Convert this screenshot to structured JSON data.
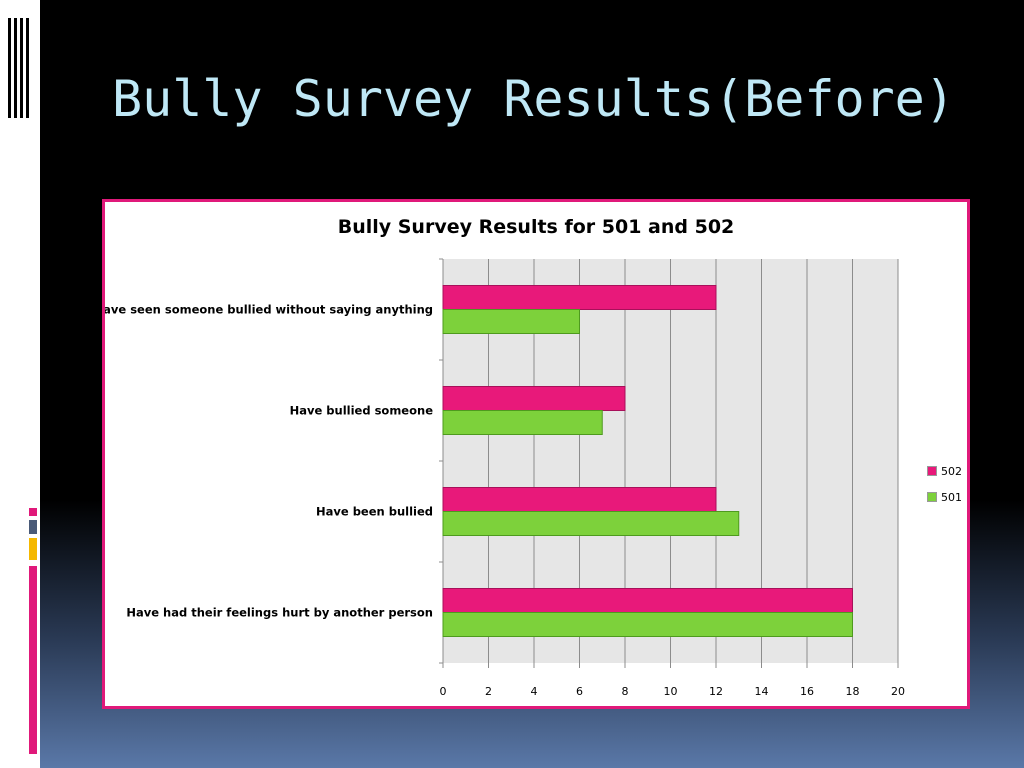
{
  "slide": {
    "title": "Bully Survey Results(Before)"
  },
  "colors": {
    "accent_pink": "#e0197a",
    "title_text": "#bfe8f6",
    "series_502": "#e8197a",
    "series_501": "#7dd13b",
    "plot_background": "#e6e6e6"
  },
  "chart_data": {
    "type": "bar",
    "orientation": "horizontal",
    "title": "Bully Survey Results for 501 and 502",
    "categories": [
      "Have seen someone bullied without saying anything",
      "Have bullied someone",
      "Have been bullied",
      "Have had their feelings hurt by another person"
    ],
    "series": [
      {
        "name": "502",
        "color": "#e8197a",
        "values": [
          12,
          8,
          12,
          18
        ]
      },
      {
        "name": "501",
        "color": "#7dd13b",
        "values": [
          6,
          7,
          13,
          18
        ]
      }
    ],
    "xlim": [
      0,
      20
    ],
    "xticks": [
      "0",
      "2",
      "4",
      "6",
      "8",
      "10",
      "12",
      "14",
      "16",
      "18",
      "20"
    ],
    "grid": true,
    "legend": "right"
  }
}
